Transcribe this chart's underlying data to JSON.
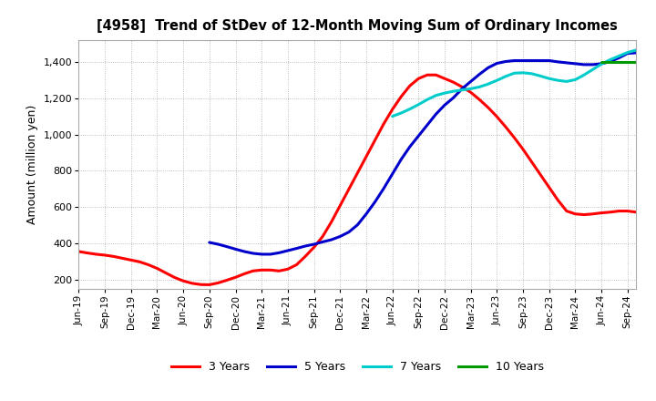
{
  "title": "[4958]  Trend of StDev of 12-Month Moving Sum of Ordinary Incomes",
  "ylabel": "Amount (million yen)",
  "ylim": [
    150,
    1520
  ],
  "yticks": [
    200,
    400,
    600,
    800,
    1000,
    1200,
    1400
  ],
  "background_color": "#ffffff",
  "grid_color": "#999999",
  "series": {
    "3 Years": {
      "color": "#ff0000",
      "x": [
        0,
        1,
        2,
        3,
        4,
        5,
        6,
        7,
        8,
        9,
        10,
        11,
        12,
        13,
        14,
        15,
        16,
        17,
        18,
        19,
        20,
        21,
        22,
        23,
        24,
        25,
        26,
        27,
        28,
        29,
        30,
        31,
        32,
        33,
        34,
        35,
        36,
        37,
        38,
        39,
        40,
        41,
        42,
        43,
        44,
        45,
        46,
        47,
        48,
        49,
        50,
        51,
        52,
        53,
        54,
        55,
        56,
        57,
        58,
        59,
        60,
        61,
        62,
        63,
        64
      ],
      "y": [
        355,
        347,
        340,
        335,
        328,
        318,
        308,
        298,
        282,
        262,
        237,
        212,
        193,
        180,
        173,
        172,
        182,
        197,
        213,
        232,
        248,
        253,
        253,
        248,
        258,
        282,
        328,
        378,
        438,
        518,
        608,
        698,
        788,
        878,
        968,
        1058,
        1138,
        1208,
        1268,
        1308,
        1328,
        1328,
        1308,
        1288,
        1262,
        1232,
        1192,
        1148,
        1098,
        1042,
        982,
        918,
        848,
        778,
        708,
        638,
        578,
        562,
        558,
        562,
        568,
        572,
        578,
        578,
        572
      ]
    },
    "5 Years": {
      "color": "#0000cc",
      "x": [
        15,
        16,
        17,
        18,
        19,
        20,
        21,
        22,
        23,
        24,
        25,
        26,
        27,
        28,
        29,
        30,
        31,
        32,
        33,
        34,
        35,
        36,
        37,
        38,
        39,
        40,
        41,
        42,
        43,
        44,
        45,
        46,
        47,
        48,
        49,
        50,
        51,
        52,
        53,
        54,
        55,
        56,
        57,
        58,
        59,
        60,
        61,
        62,
        63,
        64
      ],
      "y": [
        405,
        395,
        382,
        368,
        355,
        345,
        340,
        340,
        348,
        360,
        372,
        385,
        395,
        408,
        420,
        438,
        462,
        502,
        562,
        628,
        702,
        782,
        862,
        932,
        992,
        1052,
        1112,
        1162,
        1202,
        1252,
        1292,
        1332,
        1368,
        1392,
        1402,
        1407,
        1407,
        1407,
        1407,
        1407,
        1400,
        1395,
        1390,
        1385,
        1385,
        1390,
        1402,
        1422,
        1447,
        1450
      ]
    },
    "7 Years": {
      "color": "#00cccc",
      "x": [
        36,
        37,
        38,
        39,
        40,
        41,
        42,
        43,
        44,
        45,
        46,
        47,
        48,
        49,
        50,
        51,
        52,
        53,
        54,
        55,
        56,
        57,
        58,
        59,
        60,
        61,
        62,
        63,
        64
      ],
      "y": [
        1100,
        1118,
        1140,
        1165,
        1192,
        1215,
        1228,
        1238,
        1245,
        1252,
        1262,
        1278,
        1298,
        1320,
        1338,
        1340,
        1335,
        1322,
        1308,
        1298,
        1292,
        1302,
        1328,
        1358,
        1388,
        1412,
        1432,
        1452,
        1465
      ]
    },
    "10 Years": {
      "color": "#009900",
      "x": [
        60,
        61,
        62,
        63,
        64
      ],
      "y": [
        1400,
        1400,
        1400,
        1400,
        1400
      ]
    }
  },
  "xtick_labels": [
    "Jun-19",
    "Sep-19",
    "Dec-19",
    "Mar-20",
    "Jun-20",
    "Sep-20",
    "Dec-20",
    "Mar-21",
    "Jun-21",
    "Sep-21",
    "Dec-21",
    "Mar-22",
    "Jun-22",
    "Sep-22",
    "Dec-22",
    "Mar-23",
    "Jun-23",
    "Sep-23",
    "Dec-23",
    "Mar-24",
    "Jun-24",
    "Sep-24"
  ],
  "xtick_positions": [
    0,
    3,
    6,
    9,
    12,
    15,
    18,
    21,
    24,
    27,
    30,
    33,
    36,
    39,
    42,
    45,
    48,
    51,
    54,
    57,
    60,
    63
  ],
  "legend_labels": [
    "3 Years",
    "5 Years",
    "7 Years",
    "10 Years"
  ],
  "legend_colors": [
    "#ff0000",
    "#0000cc",
    "#00cccc",
    "#009900"
  ]
}
